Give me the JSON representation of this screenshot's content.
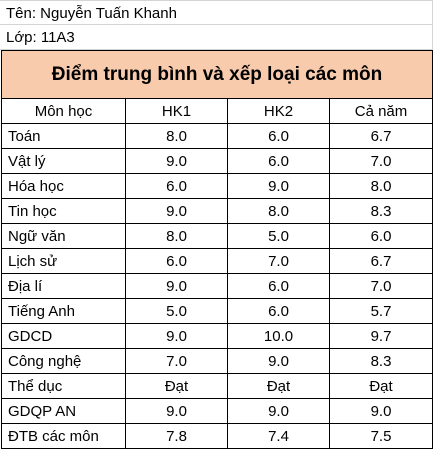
{
  "student": {
    "name_line": "Tên: Nguyễn Tuấn Khanh",
    "class_line": "Lớp: 11A3"
  },
  "table": {
    "title": "Điểm trung bình và xếp loại các môn",
    "title_bg": "#f8cbad",
    "headers": [
      "Môn học",
      "HK1",
      "HK2",
      "Cả năm"
    ],
    "rows": [
      [
        "Toán",
        "8.0",
        "6.0",
        "6.7"
      ],
      [
        "Vật lý",
        "9.0",
        "6.0",
        "7.0"
      ],
      [
        "Hóa học",
        "6.0",
        "9.0",
        "8.0"
      ],
      [
        "Tin học",
        "9.0",
        "8.0",
        "8.3"
      ],
      [
        "Ngữ văn",
        "8.0",
        "5.0",
        "6.0"
      ],
      [
        "Lịch sử",
        "6.0",
        "7.0",
        "6.7"
      ],
      [
        "Địa lí",
        "9.0",
        "6.0",
        "7.0"
      ],
      [
        "Tiếng Anh",
        "5.0",
        "6.0",
        "5.7"
      ],
      [
        "GDCD",
        "9.0",
        "10.0",
        "9.7"
      ],
      [
        "Công nghệ",
        "7.0",
        "9.0",
        "8.3"
      ],
      [
        "Thể dục",
        "Đạt",
        "Đạt",
        "Đạt"
      ],
      [
        "GDQP AN",
        "9.0",
        "9.0",
        "9.0"
      ],
      [
        "ĐTB các môn",
        "7.8",
        "7.4",
        "7.5"
      ]
    ]
  }
}
